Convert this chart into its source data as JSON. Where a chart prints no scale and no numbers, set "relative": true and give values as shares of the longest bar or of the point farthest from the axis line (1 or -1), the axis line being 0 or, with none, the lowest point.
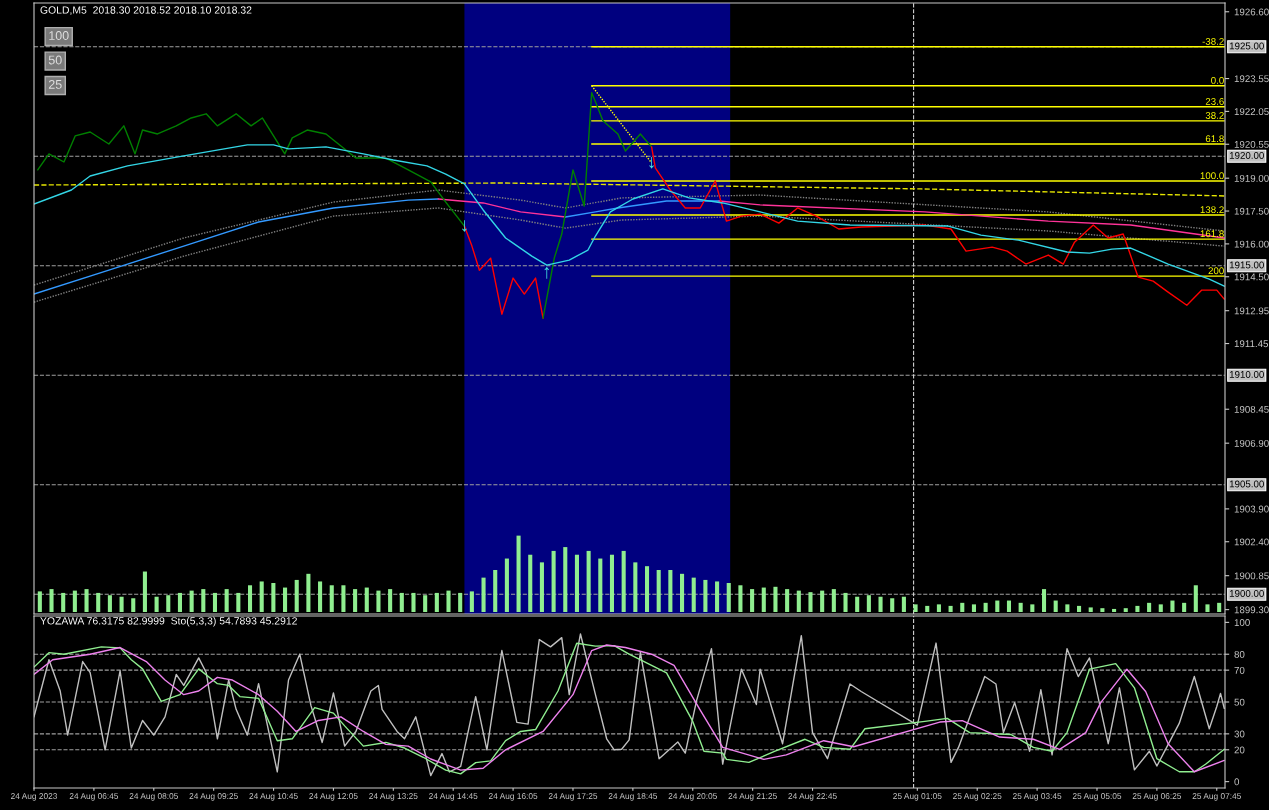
{
  "chart_data": [
    {
      "type": "line",
      "title": "GOLD,M5  2018.30 2018.52 2018.10 2018.32",
      "tick_labels": "y",
      "xlim": [
        "2023-08-24T05:25",
        "2023-08-25T07:56"
      ],
      "ylim": [
        1899.1,
        1927.0
      ],
      "yticks": [
        {
          "value": 1926.6,
          "label": "1926.60"
        },
        {
          "value": 1923.55,
          "label": "1923.55"
        },
        {
          "value": 1922.05,
          "label": "1922.05"
        },
        {
          "value": 1920.55,
          "label": "1920.55"
        },
        {
          "value": 1919.0,
          "label": "1919.00"
        },
        {
          "value": 1917.5,
          "label": "1917.50"
        },
        {
          "value": 1916.0,
          "label": "1916.00"
        },
        {
          "value": 1914.5,
          "label": "1914.50"
        },
        {
          "value": 1912.95,
          "label": "1912.95"
        },
        {
          "value": 1911.45,
          "label": "1911.45"
        },
        {
          "value": 1908.45,
          "label": "1908.45"
        },
        {
          "value": 1906.9,
          "label": "1906.90"
        },
        {
          "value": 1903.9,
          "label": "1903.90"
        },
        {
          "value": 1902.4,
          "label": "1902.40"
        },
        {
          "value": 1900.85,
          "label": "1900.85"
        },
        {
          "value": 1899.3,
          "label": "1899.30"
        }
      ],
      "annotations": [
        "100",
        "50",
        "25",
        {
          "text": "↓",
          "x": "2023-08-24T15:00",
          "y": 1916.81
        },
        {
          "text": "↑",
          "x": "2023-08-24T16:50",
          "y": 1914.67
        },
        {
          "text": "↓",
          "x": "2023-08-24T19:10",
          "y": 1919.7
        }
      ],
      "bands": [
        {
          "axis": "x",
          "from": "2023-08-24T15:00",
          "to": "2023-08-24T20:55",
          "color": "#00007f"
        }
      ],
      "ref_lines": [
        {
          "axis": "y",
          "value": 1925.0,
          "label": "1925.00",
          "color": "#a0a0a0",
          "line_style": "dashed"
        },
        {
          "axis": "y",
          "value": 1920.0,
          "label": "1920.00",
          "color": "#a0a0a0",
          "line_style": "dashed"
        },
        {
          "axis": "y",
          "value": 1915.0,
          "label": "1915.00",
          "color": "#a0a0a0",
          "line_style": "dashed"
        },
        {
          "axis": "y",
          "value": 1910.0,
          "label": "1910.00",
          "color": "#a0a0a0",
          "line_style": "dashed"
        },
        {
          "axis": "y",
          "value": 1905.0,
          "label": "1905.00",
          "color": "#a0a0a0",
          "line_style": "dashed"
        },
        {
          "axis": "y",
          "value": 1900.0,
          "label": "1900.00",
          "color": "#a0a0a0",
          "line_style": "dashed"
        },
        {
          "axis": "x",
          "value": "2023-08-25T01:00",
          "color": "#d0d0d0",
          "line_style": "dashed"
        }
      ],
      "series": [
        {
          "type": "line",
          "color": "#808080",
          "line_style": "dotted",
          "x": [
            "2023-08-24T05:25",
            "2023-08-24T08:45",
            "2023-08-24T12:05",
            "2023-08-24T14:25",
            "2023-08-24T16:15",
            "2023-08-24T17:15",
            "2023-08-24T18:30",
            "2023-08-24T21:35",
            "2023-08-25T04:00",
            "2023-08-25T07:55"
          ],
          "values": [
            1914.12,
            1916.27,
            1917.91,
            1918.46,
            1918.0,
            1917.64,
            1918.1,
            1918.23,
            1917.46,
            1916.59
          ]
        },
        {
          "type": "line",
          "color": "#808080",
          "line_style": "dotted",
          "x": [
            "2023-08-24T05:25",
            "2023-08-24T08:45",
            "2023-08-24T12:05",
            "2023-08-24T14:25",
            "2023-08-24T16:15",
            "2023-08-24T17:15",
            "2023-08-24T18:30",
            "2023-08-24T21:35",
            "2023-08-25T04:00",
            "2023-08-25T07:55"
          ],
          "values": [
            1913.34,
            1915.44,
            1917.27,
            1917.64,
            1917.09,
            1916.72,
            1917.09,
            1917.27,
            1916.59,
            1915.9
          ]
        },
        {
          "type": "line",
          "color": "#e6e600",
          "line_style": "dashed",
          "x": [
            "2023-08-24T05:25",
            "2023-08-24T15:50",
            "2023-08-25T01:10",
            "2023-08-25T07:55"
          ],
          "values": [
            1918.69,
            1918.78,
            1918.51,
            1918.19
          ]
        },
        {
          "type": "line",
          "color": "#ffff00",
          "name": "-38.2",
          "x": [
            "2023-08-24T17:50",
            "2023-08-25T07:55"
          ],
          "values": [
            1925.0,
            1925.0
          ]
        },
        {
          "type": "line",
          "color": "#ffff00",
          "name": "0.0",
          "x": [
            "2023-08-24T17:50",
            "2023-08-25T07:55"
          ],
          "values": [
            1923.22,
            1923.22
          ]
        },
        {
          "type": "line",
          "color": "#ffff00",
          "name": "23.6",
          "x": [
            "2023-08-24T17:50",
            "2023-08-25T07:55"
          ],
          "values": [
            1922.26,
            1922.26
          ]
        },
        {
          "type": "line",
          "color": "#ffff00",
          "name": "38.2",
          "x": [
            "2023-08-24T17:50",
            "2023-08-25T07:55"
          ],
          "values": [
            1921.62,
            1921.62
          ]
        },
        {
          "type": "line",
          "color": "#ffff00",
          "name": "61.8",
          "x": [
            "2023-08-24T17:50",
            "2023-08-25T07:55"
          ],
          "values": [
            1920.56,
            1920.56
          ]
        },
        {
          "type": "line",
          "color": "#ffff00",
          "name": "100.0",
          "x": [
            "2023-08-24T17:50",
            "2023-08-25T07:55"
          ],
          "values": [
            1918.87,
            1918.87
          ]
        },
        {
          "type": "line",
          "color": "#ffff00",
          "name": "138.2",
          "x": [
            "2023-08-24T17:50",
            "2023-08-25T07:55"
          ],
          "values": [
            1917.32,
            1917.32
          ]
        },
        {
          "type": "line",
          "color": "#ffff00",
          "name": "161.8",
          "x": [
            "2023-08-24T17:50",
            "2023-08-25T07:55"
          ],
          "values": [
            1916.22,
            1916.22
          ]
        },
        {
          "type": "line",
          "color": "#ffff00",
          "name": "200",
          "x": [
            "2023-08-24T17:50",
            "2023-08-25T07:55"
          ],
          "values": [
            1914.53,
            1914.53
          ]
        },
        {
          "type": "line",
          "color": "#ffff00",
          "line_style": "dotted",
          "x": [
            "2023-08-24T17:50",
            "2023-08-24T19:10"
          ],
          "values": [
            1923.22,
            1919.7
          ]
        },
        {
          "type": "line",
          "color": "#3399ff",
          "x": [
            "2023-08-24T05:25",
            "2023-08-24T07:05",
            "2023-08-24T08:45",
            "2023-08-24T10:25",
            "2023-08-24T12:05",
            "2023-08-24T13:45",
            "2023-08-24T14:25"
          ],
          "values": [
            1913.71,
            1914.8,
            1915.9,
            1917.0,
            1917.64,
            1918.0,
            1918.05
          ]
        },
        {
          "type": "line",
          "color": "#ff3399",
          "x": [
            "2023-08-24T14:25",
            "2023-08-24T15:25",
            "2023-08-24T16:15",
            "2023-08-24T17:15"
          ],
          "values": [
            1918.05,
            1917.87,
            1917.46,
            1917.23
          ]
        },
        {
          "type": "line",
          "color": "#3399ff",
          "x": [
            "2023-08-24T17:15",
            "2023-08-24T17:55",
            "2023-08-24T18:25",
            "2023-08-24T19:30",
            "2023-08-24T20:40"
          ],
          "values": [
            1917.23,
            1917.46,
            1917.64,
            1917.96,
            1917.96
          ]
        },
        {
          "type": "line",
          "color": "#ff3399",
          "x": [
            "2023-08-24T20:40",
            "2023-08-24T21:35",
            "2023-08-25T01:15",
            "2023-08-25T04:00",
            "2023-08-25T05:50",
            "2023-08-25T07:55"
          ],
          "values": [
            1917.96,
            1917.78,
            1917.46,
            1917.04,
            1916.86,
            1916.27
          ]
        },
        {
          "type": "line",
          "color": "#008000",
          "x": [
            "2023-08-24T05:30",
            "2023-08-24T05:45",
            "2023-08-24T06:05",
            "2023-08-24T06:20",
            "2023-08-24T06:40",
            "2023-08-24T07:05",
            "2023-08-24T07:25",
            "2023-08-24T07:40",
            "2023-08-24T07:50",
            "2023-08-24T08:10",
            "2023-08-24T08:35",
            "2023-08-24T08:55",
            "2023-08-24T09:15",
            "2023-08-24T09:30",
            "2023-08-24T09:55",
            "2023-08-24T10:15",
            "2023-08-24T10:30",
            "2023-08-24T11:00",
            "2023-08-24T11:10",
            "2023-08-24T11:30",
            "2023-08-24T11:55",
            "2023-08-24T12:15",
            "2023-08-24T12:35",
            "2023-08-24T13:15",
            "2023-08-24T13:45",
            "2023-08-24T14:15",
            "2023-08-24T14:35",
            "2023-08-24T15:00"
          ],
          "values": [
            1919.38,
            1920.11,
            1919.74,
            1920.93,
            1921.11,
            1920.56,
            1921.39,
            1920.11,
            1921.2,
            1921.02,
            1921.39,
            1921.75,
            1921.94,
            1921.39,
            1921.94,
            1921.39,
            1921.75,
            1920.11,
            1920.84,
            1921.2,
            1921.02,
            1920.47,
            1919.92,
            1919.92,
            1919.38,
            1918.83,
            1917.91,
            1916.81
          ]
        },
        {
          "type": "line",
          "color": "#ff0000",
          "x": [
            "2023-08-24T15:00",
            "2023-08-24T15:10",
            "2023-08-24T15:20",
            "2023-08-24T15:35",
            "2023-08-24T15:50",
            "2023-08-24T16:05",
            "2023-08-24T16:20",
            "2023-08-24T16:35",
            "2023-08-24T16:45"
          ],
          "values": [
            1916.81,
            1915.9,
            1914.8,
            1915.35,
            1912.79,
            1914.44,
            1913.71,
            1914.44,
            1912.61
          ]
        },
        {
          "type": "line",
          "color": "#008000",
          "x": [
            "2023-08-24T16:45",
            "2023-08-24T17:00",
            "2023-08-24T17:10",
            "2023-08-24T17:25",
            "2023-08-24T17:40",
            "2023-08-24T17:50",
            "2023-08-24T17:55",
            "2023-08-24T18:05",
            "2023-08-24T18:25",
            "2023-08-24T18:35",
            "2023-08-24T18:55",
            "2023-08-24T19:10"
          ],
          "values": [
            1912.61,
            1915.35,
            1916.45,
            1919.38,
            1917.73,
            1922.9,
            1922.49,
            1921.62,
            1921.02,
            1920.24,
            1921.02,
            1920.43
          ]
        },
        {
          "type": "line",
          "color": "#ff0000",
          "x": [
            "2023-08-24T19:10",
            "2023-08-24T19:15",
            "2023-08-24T19:35",
            "2023-08-24T19:55",
            "2023-08-24T20:15",
            "2023-08-24T20:35",
            "2023-08-24T20:50",
            "2023-08-24T21:10",
            "2023-08-24T21:35",
            "2023-08-24T22:00",
            "2023-08-24T22:25",
            "2023-08-24T22:50",
            "2023-08-24T23:20",
            "2023-08-24T23:50",
            "2023-08-25T01:15",
            "2023-08-25T01:50",
            "2023-08-25T02:10",
            "2023-08-25T02:45",
            "2023-08-25T03:05",
            "2023-08-25T03:30",
            "2023-08-25T04:00",
            "2023-08-25T04:20",
            "2023-08-25T04:35",
            "2023-08-25T05:00",
            "2023-08-25T05:20",
            "2023-08-25T05:40",
            "2023-08-25T06:00",
            "2023-08-25T06:20",
            "2023-08-25T06:40",
            "2023-08-25T07:05",
            "2023-08-25T07:25",
            "2023-08-25T07:45",
            "2023-08-25T07:55"
          ],
          "values": [
            1920.43,
            1919.47,
            1918.46,
            1917.64,
            1917.64,
            1918.87,
            1917.04,
            1917.27,
            1917.36,
            1916.95,
            1917.64,
            1917.27,
            1916.68,
            1916.77,
            1916.86,
            1916.68,
            1915.67,
            1915.85,
            1915.67,
            1915.08,
            1915.49,
            1915.08,
            1916.08,
            1916.86,
            1916.27,
            1916.45,
            1914.48,
            1914.3,
            1913.8,
            1913.2,
            1913.89,
            1913.89,
            1913.48
          ]
        },
        {
          "type": "line",
          "color": "#33d6e6",
          "x": [
            "2023-08-24T05:25",
            "2023-08-24T06:15",
            "2023-08-24T06:40",
            "2023-08-24T07:30",
            "2023-08-24T08:45",
            "2023-08-24T10:10",
            "2023-08-24T10:45",
            "2023-08-24T11:05",
            "2023-08-24T11:55",
            "2023-08-24T12:45",
            "2023-08-24T13:25",
            "2023-08-24T14:10",
            "2023-08-24T14:35",
            "2023-08-24T15:00",
            "2023-08-24T15:25",
            "2023-08-24T15:55",
            "2023-08-24T16:30",
            "2023-08-24T16:50",
            "2023-08-24T17:20",
            "2023-08-24T17:45",
            "2023-08-24T17:55",
            "2023-08-24T18:15",
            "2023-08-24T18:45",
            "2023-08-24T19:25",
            "2023-08-24T20:00",
            "2023-08-24T20:45",
            "2023-08-24T21:35",
            "2023-08-24T22:25",
            "2023-08-24T23:35",
            "2023-08-25T01:45",
            "2023-08-25T02:30",
            "2023-08-25T03:20",
            "2023-08-25T04:25",
            "2023-08-25T04:55",
            "2023-08-25T05:25",
            "2023-08-25T05:50",
            "2023-08-25T06:40",
            "2023-08-25T07:35",
            "2023-08-25T07:55"
          ],
          "values": [
            1917.82,
            1918.46,
            1919.1,
            1919.56,
            1920.02,
            1920.52,
            1920.52,
            1920.34,
            1920.43,
            1920.11,
            1919.83,
            1919.56,
            1919.19,
            1918.74,
            1917.55,
            1916.27,
            1915.44,
            1915.03,
            1915.26,
            1915.72,
            1916.36,
            1917.46,
            1918.05,
            1918.51,
            1918.1,
            1917.87,
            1917.46,
            1917.04,
            1916.86,
            1916.82,
            1916.4,
            1916.17,
            1915.63,
            1915.58,
            1915.76,
            1915.81,
            1915.08,
            1914.39,
            1914.07
          ]
        }
      ]
    },
    {
      "type": "bar",
      "relative": true,
      "color": "#90ee90",
      "categories": [
        null,
        null,
        null,
        null,
        null,
        null,
        null,
        null,
        null,
        null,
        null,
        null,
        null,
        null,
        null,
        null,
        null,
        null,
        null,
        null,
        null,
        null,
        null,
        null,
        null,
        null,
        null,
        null,
        null,
        null,
        null,
        null,
        null,
        null,
        null,
        null,
        null,
        null,
        null,
        null,
        null,
        null,
        null,
        null,
        null,
        null,
        null,
        null,
        null,
        null,
        null,
        null,
        null,
        null,
        null,
        null,
        null,
        null,
        null,
        null,
        null,
        null,
        null,
        null,
        null,
        null,
        null,
        null,
        null,
        null,
        null,
        null,
        null,
        null,
        null,
        null,
        null,
        null,
        null,
        null,
        null,
        null,
        null,
        null,
        null,
        null,
        null,
        null,
        null,
        null,
        null,
        null,
        null,
        null,
        null,
        null,
        null,
        null,
        null,
        null,
        null,
        null
      ],
      "values": [
        0.27,
        0.3,
        0.25,
        0.28,
        0.3,
        0.25,
        0.22,
        0.2,
        0.18,
        0.53,
        0.2,
        0.22,
        0.25,
        0.28,
        0.3,
        0.25,
        0.3,
        0.25,
        0.35,
        0.4,
        0.38,
        0.32,
        0.42,
        0.5,
        0.4,
        0.35,
        0.35,
        0.3,
        0.32,
        0.28,
        0.3,
        0.25,
        0.25,
        0.22,
        0.25,
        0.28,
        0.25,
        0.27,
        0.45,
        0.55,
        0.7,
        1,
        0.75,
        0.65,
        0.8,
        0.85,
        0.75,
        0.8,
        0.7,
        0.75,
        0.8,
        0.65,
        0.6,
        0.55,
        0.55,
        0.5,
        0.45,
        0.42,
        0.4,
        0.38,
        0.35,
        0.3,
        0.32,
        0.33,
        0.3,
        0.28,
        0.26,
        0.28,
        0.3,
        0.25,
        0.2,
        0.22,
        0.2,
        0.18,
        0.2,
        0.1,
        0.08,
        0.1,
        0.08,
        0.12,
        0.1,
        0.12,
        0.15,
        0.15,
        0.12,
        0.1,
        0.3,
        0.15,
        0.1,
        0.08,
        0.06,
        0.05,
        0.04,
        0.05,
        0.08,
        0.12,
        0.1,
        0.15,
        0.12,
        0.35,
        0.1,
        0.12
      ]
    },
    {
      "type": "line",
      "title": "YOZAWA 76.3175 82.9999  Sto(5,3,3) 54.7893 45.2912",
      "xlim": [
        "2023-08-24T05:25",
        "2023-08-25T07:56"
      ],
      "ylim": [
        -4,
        104
      ],
      "yticks": [
        0,
        20,
        30,
        50,
        70,
        80,
        100
      ],
      "xticks": [
        {
          "value": "2023-08-24T05:25",
          "label": "24 Aug 2023"
        },
        {
          "value": "2023-08-24T06:45",
          "label": "24 Aug 06:45"
        },
        {
          "value": "2023-08-24T08:05",
          "label": "24 Aug 08:05"
        },
        {
          "value": "2023-08-24T09:25",
          "label": "24 Aug 09:25"
        },
        {
          "value": "2023-08-24T10:45",
          "label": "24 Aug 10:45"
        },
        {
          "value": "2023-08-24T12:05",
          "label": "24 Aug 12:05"
        },
        {
          "value": "2023-08-24T13:25",
          "label": "24 Aug 13:25"
        },
        {
          "value": "2023-08-24T14:45",
          "label": "24 Aug 14:45"
        },
        {
          "value": "2023-08-24T16:05",
          "label": "24 Aug 16:05"
        },
        {
          "value": "2023-08-24T17:25",
          "label": "24 Aug 17:25"
        },
        {
          "value": "2023-08-24T18:45",
          "label": "24 Aug 18:45"
        },
        {
          "value": "2023-08-24T20:05",
          "label": "24 Aug 20:05"
        },
        {
          "value": "2023-08-24T21:25",
          "label": "24 Aug 21:25"
        },
        {
          "value": "2023-08-24T22:45",
          "label": "24 Aug 22:45"
        },
        {
          "value": "2023-08-25T01:05",
          "label": "25 Aug 01:05"
        },
        {
          "value": "2023-08-25T02:25",
          "label": "25 Aug 02:25"
        },
        {
          "value": "2023-08-25T03:45",
          "label": "25 Aug 03:45"
        },
        {
          "value": "2023-08-25T05:05",
          "label": "25 Aug 05:05"
        },
        {
          "value": "2023-08-25T06:25",
          "label": "25 Aug 06:25"
        },
        {
          "value": "2023-08-25T07:45",
          "label": "25 Aug 07:45"
        }
      ],
      "ref_lines": [
        {
          "axis": "y",
          "value": 20,
          "color": "#a0a0a0",
          "line_style": "dashed"
        },
        {
          "axis": "y",
          "value": 30,
          "color": "#a0a0a0",
          "line_style": "dashed"
        },
        {
          "axis": "y",
          "value": 50,
          "color": "#a0a0a0",
          "line_style": "dashed"
        },
        {
          "axis": "y",
          "value": 70,
          "color": "#a0a0a0",
          "line_style": "dashed"
        },
        {
          "axis": "y",
          "value": 80,
          "color": "#a0a0a0",
          "line_style": "dashed"
        },
        {
          "axis": "x",
          "value": "2023-08-25T01:00",
          "color": "#d0d0d0",
          "line_style": "dashed"
        }
      ],
      "series": [
        {
          "type": "line",
          "color": "#c0c0c0",
          "x": [
            "2023-08-24T05:25",
            "2023-08-24T05:45",
            "2023-08-24T06:00",
            "2023-08-24T06:10",
            "2023-08-24T06:30",
            "2023-08-24T06:40",
            "2023-08-24T07:00",
            "2023-08-24T07:20",
            "2023-08-24T07:35",
            "2023-08-24T07:50",
            "2023-08-24T08:05",
            "2023-08-24T08:20",
            "2023-08-24T08:35",
            "2023-08-24T08:45",
            "2023-08-24T09:05",
            "2023-08-24T09:15",
            "2023-08-24T09:30",
            "2023-08-24T09:45",
            "2023-08-24T09:55",
            "2023-08-24T10:10",
            "2023-08-24T10:25",
            "2023-08-24T10:50",
            "2023-08-24T11:05",
            "2023-08-24T11:20",
            "2023-08-24T11:35",
            "2023-08-24T11:50",
            "2023-08-24T12:05",
            "2023-08-24T12:20",
            "2023-08-24T12:35",
            "2023-08-24T12:55",
            "2023-08-24T13:05",
            "2023-08-24T13:10",
            "2023-08-24T13:30",
            "2023-08-24T13:40",
            "2023-08-24T13:55",
            "2023-08-24T14:15",
            "2023-08-24T14:30",
            "2023-08-24T14:40",
            "2023-08-24T14:55",
            "2023-08-24T15:15",
            "2023-08-24T15:30",
            "2023-08-24T15:50",
            "2023-08-24T16:10",
            "2023-08-24T16:25",
            "2023-08-24T16:40",
            "2023-08-24T16:55",
            "2023-08-24T17:10",
            "2023-08-24T17:20",
            "2023-08-24T17:35",
            "2023-08-24T17:55",
            "2023-08-24T18:10",
            "2023-08-24T18:20",
            "2023-08-24T18:30",
            "2023-08-24T18:40",
            "2023-08-24T18:55",
            "2023-08-24T19:20",
            "2023-08-24T19:45",
            "2023-08-24T19:55",
            "2023-08-24T20:10",
            "2023-08-24T20:30",
            "2023-08-24T20:45",
            "2023-08-24T21:10",
            "2023-08-24T21:30",
            "2023-08-24T21:35",
            "2023-08-24T22:05",
            "2023-08-24T22:30",
            "2023-08-24T22:45",
            "2023-08-24T23:05",
            "2023-08-24T23:35",
            "2023-08-24T23:50",
            "2023-08-25T01:05",
            "2023-08-25T01:30",
            "2023-08-25T01:50",
            "2023-08-25T02:00",
            "2023-08-25T02:35",
            "2023-08-25T02:50",
            "2023-08-25T03:00",
            "2023-08-25T03:15",
            "2023-08-25T03:35",
            "2023-08-25T03:50",
            "2023-08-25T04:05",
            "2023-08-25T04:25",
            "2023-08-25T04:40",
            "2023-08-25T04:55",
            "2023-08-25T05:20",
            "2023-08-25T05:35",
            "2023-08-25T05:55",
            "2023-08-25T06:15",
            "2023-08-25T06:25",
            "2023-08-25T06:55",
            "2023-08-25T07:15",
            "2023-08-25T07:35",
            "2023-08-25T07:45",
            "2023-08-25T07:50",
            "2023-08-25T07:55"
          ],
          "values": [
            40.7,
            76.5,
            56.9,
            29.2,
            75.4,
            68.5,
            20,
            69.6,
            21.1,
            38.4,
            29.2,
            40.7,
            67.3,
            60.4,
            77.7,
            68.5,
            26.9,
            63.8,
            45.4,
            29.2,
            61.5,
            6.1,
            63.8,
            80,
            47.7,
            24.6,
            55.7,
            22.3,
            31.5,
            56.9,
            60.4,
            45.4,
            31.5,
            26.9,
            40.7,
            3.8,
            17.6,
            6.1,
            9.6,
            53.4,
            20,
            82.3,
            37.2,
            36.1,
            89.2,
            84.6,
            90.4,
            54.6,
            92.7,
            54.6,
            26.9,
            20,
            20.3,
            26.2,
            81.2,
            14.4,
            24.9,
            17.9,
            50.7,
            83.5,
            11,
            70.6,
            48.4,
            70.6,
            23.8,
            91.7,
            30.8,
            14.4,
            61.3,
            56.6,
            35.5,
            87,
            12.1,
            21.5,
            66,
            61.3,
            30.8,
            49.6,
            19.1,
            57.8,
            16.8,
            83.5,
            66,
            77.7,
            23.8,
            58.9,
            7.4,
            19.1,
            9.8,
            36.7,
            66,
            33.2,
            47.2,
            55.4,
            46
          ]
        },
        {
          "type": "line",
          "color": "#90ee90",
          "x": [
            "2023-08-24T05:25",
            "2023-08-24T05:45",
            "2023-08-24T06:05",
            "2023-08-24T06:55",
            "2023-08-24T07:20",
            "2023-08-24T07:35",
            "2023-08-24T07:50",
            "2023-08-24T08:15",
            "2023-08-24T08:40",
            "2023-08-24T09:05",
            "2023-08-24T09:30",
            "2023-08-24T09:45",
            "2023-08-24T10:00",
            "2023-08-24T10:25",
            "2023-08-24T10:50",
            "2023-08-24T11:10",
            "2023-08-24T11:40",
            "2023-08-24T12:05",
            "2023-08-24T12:20",
            "2023-08-24T12:45",
            "2023-08-24T13:15",
            "2023-08-24T13:40",
            "2023-08-24T14:05",
            "2023-08-24T14:35",
            "2023-08-24T14:55",
            "2023-08-24T15:15",
            "2023-08-24T15:35",
            "2023-08-24T15:55",
            "2023-08-24T16:15",
            "2023-08-24T16:35",
            "2023-08-24T17:05",
            "2023-08-24T17:30",
            "2023-08-24T17:55",
            "2023-08-24T18:20",
            "2023-08-24T18:40",
            "2023-08-24T19:30",
            "2023-08-24T20:05",
            "2023-08-24T20:20",
            "2023-08-24T20:45",
            "2023-08-24T20:50",
            "2023-08-24T21:20",
            "2023-08-24T21:55",
            "2023-08-24T22:35",
            "2023-08-24T23:00",
            "2023-08-24T23:35",
            "2023-08-24T23:55",
            "2023-08-25T01:15",
            "2023-08-25T01:45",
            "2023-08-25T02:15",
            "2023-08-25T03:10",
            "2023-08-25T03:40",
            "2023-08-25T04:05",
            "2023-08-25T04:25",
            "2023-08-25T04:55",
            "2023-08-25T05:30",
            "2023-08-25T05:55",
            "2023-08-25T06:25",
            "2023-08-25T06:55",
            "2023-08-25T07:15",
            "2023-08-25T07:30",
            "2023-08-25T07:55"
          ],
          "values": [
            71.9,
            81,
            80,
            84.6,
            84,
            76.5,
            70.8,
            50.4,
            54.6,
            70.8,
            61.5,
            60.4,
            53.4,
            52.3,
            25.7,
            26.9,
            46.5,
            43,
            35,
            22.3,
            24.6,
            21.1,
            15.3,
            7.2,
            4.9,
            11.9,
            13,
            25.7,
            31.5,
            32.7,
            56.9,
            86.9,
            85.1,
            85.4,
            80,
            68.3,
            37.8,
            19.1,
            17.9,
            14,
            12.1,
            19.1,
            26.6,
            21.5,
            20.3,
            33.2,
            37.8,
            39.7,
            30.8,
            29.6,
            21.5,
            19.1,
            30.8,
            70.6,
            74.1,
            58.9,
            14.4,
            6.2,
            6.2,
            10.9,
            20.3
          ]
        },
        {
          "type": "line",
          "color": "#ee82ee",
          "x": [
            "2023-08-24T05:25",
            "2023-08-24T05:50",
            "2023-08-24T06:40",
            "2023-08-24T07:20",
            "2023-08-24T07:55",
            "2023-08-24T08:20",
            "2023-08-24T08:45",
            "2023-08-24T09:05",
            "2023-08-24T09:30",
            "2023-08-24T09:50",
            "2023-08-24T10:25",
            "2023-08-24T10:50",
            "2023-08-24T11:15",
            "2023-08-24T11:45",
            "2023-08-24T12:15",
            "2023-08-24T12:45",
            "2023-08-24T13:15",
            "2023-08-24T13:45",
            "2023-08-24T14:15",
            "2023-08-24T14:55",
            "2023-08-24T15:25",
            "2023-08-24T15:55",
            "2023-08-24T16:45",
            "2023-08-24T17:25",
            "2023-08-24T17:50",
            "2023-08-24T18:10",
            "2023-08-24T18:35",
            "2023-08-24T19:10",
            "2023-08-24T19:40",
            "2023-08-24T20:15",
            "2023-08-24T20:45",
            "2023-08-24T21:40",
            "2023-08-24T22:10",
            "2023-08-24T23:00",
            "2023-08-24T23:40",
            "2023-08-25T01:35",
            "2023-08-25T02:05",
            "2023-08-25T02:55",
            "2023-08-25T03:40",
            "2023-08-25T04:15",
            "2023-08-25T04:50",
            "2023-08-25T05:10",
            "2023-08-25T05:45",
            "2023-08-25T06:10",
            "2023-08-25T06:40",
            "2023-08-25T07:15",
            "2023-08-25T07:55"
          ],
          "values": [
            67.3,
            76.5,
            80,
            84.2,
            75.4,
            63.8,
            54.6,
            56.9,
            65.5,
            63.8,
            54.6,
            44.2,
            31.5,
            38.4,
            40.7,
            31.5,
            23.4,
            22.3,
            14.2,
            7.2,
            8.4,
            20,
            31.5,
            54.6,
            82.3,
            85.8,
            84.2,
            80,
            73,
            44.9,
            21.5,
            14,
            16.8,
            25.7,
            21.9,
            37.4,
            38.3,
            28,
            26.6,
            20.3,
            30.8,
            49.6,
            70.6,
            56.6,
            23.8,
            6.2,
            13.3
          ]
        }
      ]
    }
  ]
}
